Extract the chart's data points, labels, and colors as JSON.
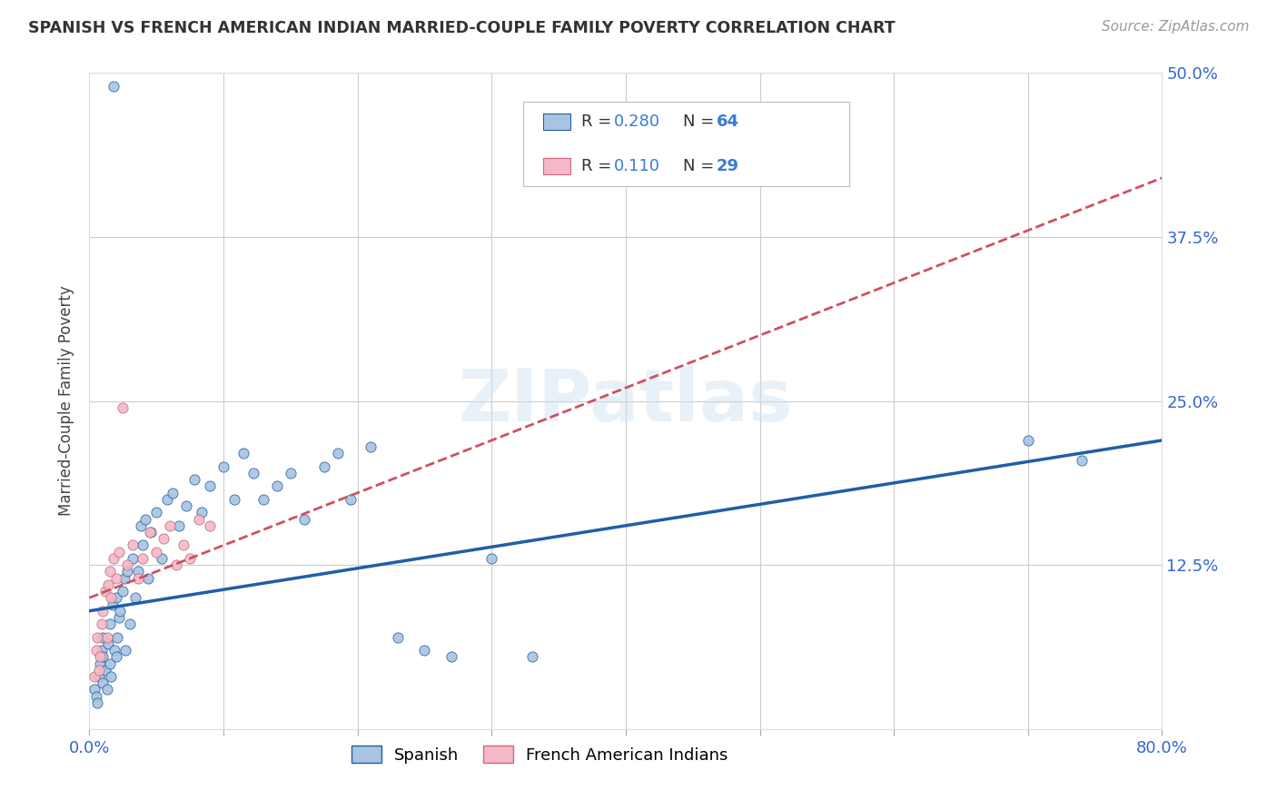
{
  "title": "SPANISH VS FRENCH AMERICAN INDIAN MARRIED-COUPLE FAMILY POVERTY CORRELATION CHART",
  "source": "Source: ZipAtlas.com",
  "ylabel": "Married-Couple Family Poverty",
  "xlim": [
    0,
    0.8
  ],
  "ylim": [
    0,
    0.5
  ],
  "xtick_pos": [
    0.0,
    0.1,
    0.2,
    0.3,
    0.4,
    0.5,
    0.6,
    0.7,
    0.8
  ],
  "xticklabels": [
    "0.0%",
    "",
    "",
    "",
    "",
    "",
    "",
    "",
    "80.0%"
  ],
  "ytick_pos": [
    0.0,
    0.125,
    0.25,
    0.375,
    0.5
  ],
  "ytick_labels": [
    "",
    "12.5%",
    "25.0%",
    "37.5%",
    "50.0%"
  ],
  "spanish_R": 0.28,
  "spanish_N": 64,
  "french_R": 0.11,
  "french_N": 29,
  "spanish_color": "#a8c4e0",
  "french_color": "#f4b8c8",
  "spanish_line_color": "#1f5fa6",
  "french_line_color": "#d05060",
  "watermark": "ZIPatlas",
  "spanish_x": [
    0.004,
    0.005,
    0.006,
    0.007,
    0.008,
    0.009,
    0.01,
    0.01,
    0.01,
    0.012,
    0.013,
    0.014,
    0.015,
    0.015,
    0.016,
    0.017,
    0.018,
    0.019,
    0.02,
    0.02,
    0.021,
    0.022,
    0.023,
    0.025,
    0.026,
    0.027,
    0.028,
    0.03,
    0.032,
    0.034,
    0.036,
    0.038,
    0.04,
    0.042,
    0.044,
    0.046,
    0.05,
    0.054,
    0.058,
    0.062,
    0.067,
    0.072,
    0.078,
    0.084,
    0.09,
    0.1,
    0.108,
    0.115,
    0.122,
    0.13,
    0.14,
    0.15,
    0.16,
    0.175,
    0.185,
    0.195,
    0.21,
    0.23,
    0.25,
    0.27,
    0.3,
    0.33,
    0.7,
    0.74
  ],
  "spanish_y": [
    0.03,
    0.025,
    0.02,
    0.04,
    0.05,
    0.06,
    0.035,
    0.055,
    0.07,
    0.045,
    0.03,
    0.065,
    0.05,
    0.08,
    0.04,
    0.095,
    0.49,
    0.06,
    0.055,
    0.1,
    0.07,
    0.085,
    0.09,
    0.105,
    0.115,
    0.06,
    0.12,
    0.08,
    0.13,
    0.1,
    0.12,
    0.155,
    0.14,
    0.16,
    0.115,
    0.15,
    0.165,
    0.13,
    0.175,
    0.18,
    0.155,
    0.17,
    0.19,
    0.165,
    0.185,
    0.2,
    0.175,
    0.21,
    0.195,
    0.175,
    0.185,
    0.195,
    0.16,
    0.2,
    0.21,
    0.175,
    0.215,
    0.07,
    0.06,
    0.055,
    0.13,
    0.055,
    0.22,
    0.205
  ],
  "french_x": [
    0.004,
    0.005,
    0.006,
    0.007,
    0.008,
    0.009,
    0.01,
    0.012,
    0.013,
    0.014,
    0.015,
    0.016,
    0.018,
    0.02,
    0.022,
    0.025,
    0.028,
    0.032,
    0.036,
    0.04,
    0.045,
    0.05,
    0.055,
    0.06,
    0.065,
    0.07,
    0.075,
    0.082,
    0.09
  ],
  "french_y": [
    0.04,
    0.06,
    0.07,
    0.045,
    0.055,
    0.08,
    0.09,
    0.105,
    0.07,
    0.11,
    0.12,
    0.1,
    0.13,
    0.115,
    0.135,
    0.245,
    0.125,
    0.14,
    0.115,
    0.13,
    0.15,
    0.135,
    0.145,
    0.155,
    0.125,
    0.14,
    0.13,
    0.16,
    0.155
  ]
}
